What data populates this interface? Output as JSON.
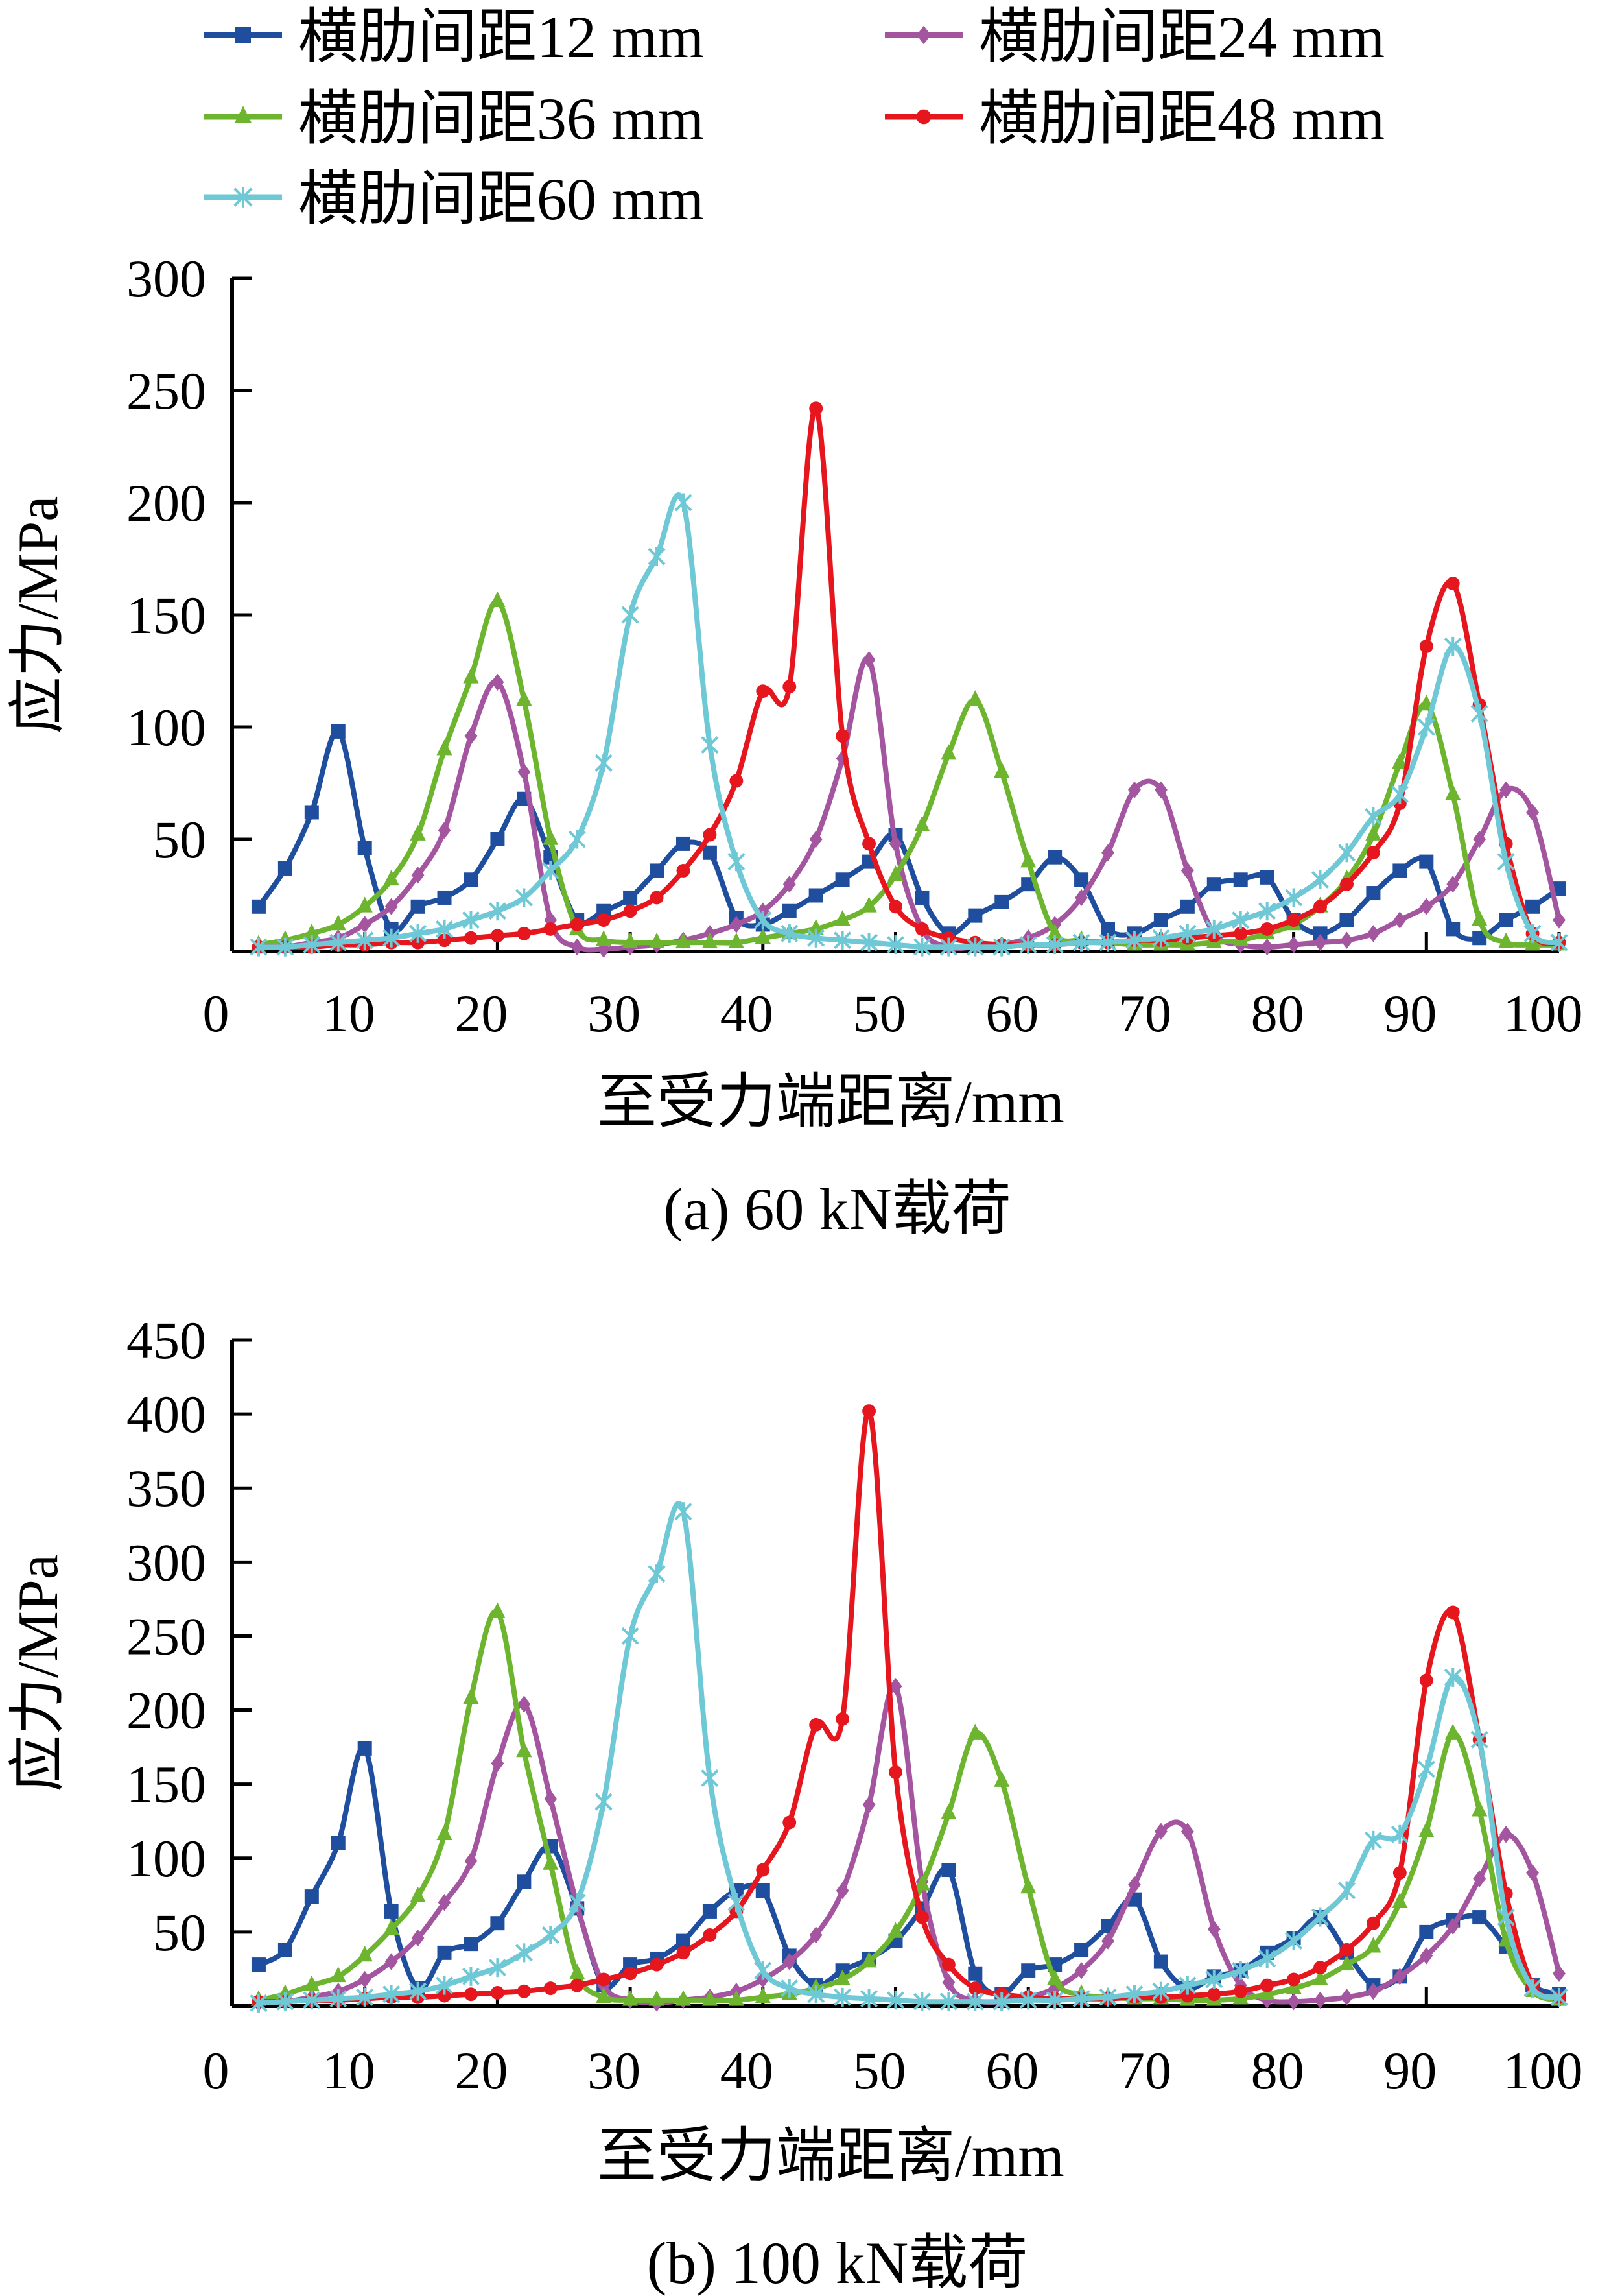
{
  "legend": [
    {
      "name": "横肋间距12 mm",
      "color": "#1F4E9E",
      "marker": "square"
    },
    {
      "name": "横肋间距24 mm",
      "color": "#A455A0",
      "marker": "diamond"
    },
    {
      "name": "横肋间距36 mm",
      "color": "#6DB52E",
      "marker": "triangle"
    },
    {
      "name": "横肋间距48 mm",
      "color": "#E5161E",
      "marker": "circle"
    },
    {
      "name": "横肋间距60 mm",
      "color": "#6EC8D5",
      "marker": "asterisk"
    }
  ],
  "chart_data": [
    {
      "type": "line",
      "title": "(a)  60 kN载荷",
      "xlabel": "至受力端距离/mm",
      "ylabel": "应力/MPa",
      "xlim": [
        0,
        100
      ],
      "ylim": [
        0,
        300
      ],
      "xticks": [
        0,
        10,
        20,
        30,
        40,
        50,
        60,
        70,
        80,
        90,
        100
      ],
      "yticks": [
        50,
        100,
        150,
        200,
        250,
        300
      ],
      "x": [
        2,
        4,
        6,
        8,
        10,
        12,
        14,
        16,
        18,
        20,
        22,
        24,
        26,
        28,
        30,
        32,
        34,
        36,
        38,
        40,
        42,
        44,
        46,
        48,
        50,
        52,
        54,
        56,
        58,
        60,
        62,
        64,
        66,
        68,
        70,
        72,
        74,
        76,
        78,
        80,
        82,
        84,
        86,
        88,
        90,
        92,
        94,
        96,
        98,
        100
      ],
      "series": [
        {
          "name": "横肋间距12 mm",
          "values": [
            20,
            37,
            62,
            98,
            46,
            10,
            20,
            24,
            32,
            50,
            68,
            42,
            14,
            18,
            24,
            36,
            48,
            44,
            15,
            12,
            18,
            25,
            32,
            40,
            52,
            24,
            8,
            16,
            22,
            30,
            42,
            32,
            10,
            8,
            14,
            20,
            30,
            32,
            33,
            14,
            8,
            14,
            26,
            36,
            40,
            10,
            6,
            14,
            20,
            28
          ]
        },
        {
          "name": "横肋间距24 mm",
          "values": [
            2,
            2,
            4,
            6,
            12,
            20,
            34,
            54,
            96,
            120,
            80,
            14,
            2,
            1,
            2,
            3,
            5,
            8,
            12,
            18,
            30,
            50,
            86,
            130,
            48,
            10,
            2,
            2,
            3,
            6,
            12,
            24,
            44,
            72,
            72,
            36,
            8,
            3,
            2,
            3,
            4,
            5,
            8,
            14,
            20,
            30,
            50,
            72,
            62,
            14
          ]
        },
        {
          "name": "横肋间距36 mm",
          "values": [
            3,
            5,
            8,
            12,
            20,
            32,
            52,
            90,
            122,
            156,
            112,
            50,
            10,
            5,
            4,
            4,
            4,
            4,
            4,
            6,
            8,
            10,
            14,
            20,
            34,
            56,
            88,
            112,
            80,
            40,
            8,
            5,
            4,
            3,
            3,
            3,
            4,
            5,
            8,
            12,
            20,
            32,
            52,
            84,
            110,
            70,
            14,
            4,
            3,
            3
          ]
        },
        {
          "name": "横肋间距48 mm",
          "values": [
            2,
            2,
            2,
            3,
            3,
            4,
            4,
            5,
            6,
            7,
            8,
            10,
            12,
            14,
            18,
            24,
            36,
            52,
            76,
            116,
            118,
            242,
            96,
            48,
            20,
            10,
            6,
            4,
            3,
            3,
            3,
            4,
            4,
            5,
            5,
            6,
            7,
            8,
            10,
            14,
            20,
            30,
            44,
            66,
            136,
            164,
            110,
            48,
            8,
            4
          ]
        },
        {
          "name": "横肋间距60 mm",
          "values": [
            2,
            2,
            3,
            4,
            5,
            6,
            8,
            10,
            14,
            18,
            24,
            36,
            50,
            84,
            150,
            176,
            200,
            92,
            40,
            14,
            8,
            6,
            5,
            4,
            3,
            2,
            2,
            2,
            2,
            3,
            3,
            4,
            4,
            5,
            6,
            8,
            10,
            14,
            18,
            24,
            32,
            44,
            60,
            70,
            100,
            136,
            106,
            40,
            8,
            4
          ]
        }
      ]
    },
    {
      "type": "line",
      "title": "(b)  100 kN载荷",
      "xlabel": "至受力端距离/mm",
      "ylabel": "应力/MPa",
      "xlim": [
        0,
        100
      ],
      "ylim": [
        0,
        450
      ],
      "xticks": [
        0,
        10,
        20,
        30,
        40,
        50,
        60,
        70,
        80,
        90,
        100
      ],
      "yticks": [
        50,
        100,
        150,
        200,
        250,
        300,
        350,
        400,
        450
      ],
      "x": [
        2,
        4,
        6,
        8,
        10,
        12,
        14,
        16,
        18,
        20,
        22,
        24,
        26,
        28,
        30,
        32,
        34,
        36,
        38,
        40,
        42,
        44,
        46,
        48,
        50,
        52,
        54,
        56,
        58,
        60,
        62,
        64,
        66,
        68,
        70,
        72,
        74,
        76,
        78,
        80,
        82,
        84,
        86,
        88,
        90,
        92,
        94,
        96,
        98,
        100
      ],
      "series": [
        {
          "name": "横肋间距12 mm",
          "values": [
            28,
            38,
            74,
            110,
            174,
            64,
            12,
            36,
            42,
            56,
            84,
            108,
            66,
            14,
            28,
            32,
            44,
            64,
            78,
            78,
            34,
            14,
            24,
            32,
            44,
            66,
            92,
            22,
            8,
            24,
            28,
            38,
            54,
            72,
            30,
            12,
            20,
            24,
            36,
            46,
            60,
            36,
            14,
            20,
            50,
            58,
            60,
            40,
            14,
            8
          ]
        },
        {
          "name": "横肋间距24 mm",
          "values": [
            2,
            3,
            6,
            10,
            18,
            30,
            46,
            70,
            98,
            164,
            204,
            140,
            68,
            14,
            4,
            2,
            4,
            6,
            10,
            18,
            30,
            48,
            78,
            136,
            216,
            84,
            16,
            4,
            3,
            6,
            12,
            24,
            44,
            82,
            118,
            118,
            52,
            14,
            4,
            3,
            4,
            6,
            10,
            20,
            34,
            54,
            86,
            116,
            90,
            22
          ]
        },
        {
          "name": "横肋间距36 mm",
          "values": [
            4,
            8,
            14,
            20,
            34,
            52,
            74,
            116,
            208,
            266,
            172,
            96,
            22,
            6,
            4,
            4,
            4,
            4,
            4,
            6,
            8,
            12,
            18,
            30,
            50,
            82,
            130,
            184,
            152,
            80,
            18,
            8,
            6,
            5,
            5,
            4,
            4,
            5,
            8,
            12,
            18,
            28,
            40,
            70,
            118,
            184,
            132,
            44,
            10,
            4
          ]
        },
        {
          "name": "横肋间距48 mm",
          "values": [
            3,
            3,
            4,
            4,
            5,
            6,
            6,
            7,
            8,
            9,
            10,
            12,
            14,
            18,
            22,
            28,
            36,
            48,
            64,
            92,
            124,
            190,
            194,
            402,
            158,
            60,
            28,
            12,
            8,
            6,
            5,
            5,
            5,
            6,
            6,
            7,
            8,
            10,
            14,
            18,
            26,
            38,
            56,
            90,
            220,
            266,
            180,
            76,
            14,
            6
          ]
        },
        {
          "name": "横肋间距60 mm",
          "values": [
            2,
            3,
            4,
            5,
            6,
            8,
            10,
            14,
            20,
            26,
            36,
            48,
            70,
            138,
            250,
            292,
            334,
            154,
            70,
            24,
            12,
            8,
            6,
            5,
            4,
            3,
            3,
            3,
            3,
            4,
            4,
            5,
            6,
            8,
            10,
            14,
            18,
            24,
            32,
            44,
            60,
            78,
            112,
            116,
            160,
            222,
            180,
            60,
            12,
            6
          ]
        }
      ]
    }
  ]
}
